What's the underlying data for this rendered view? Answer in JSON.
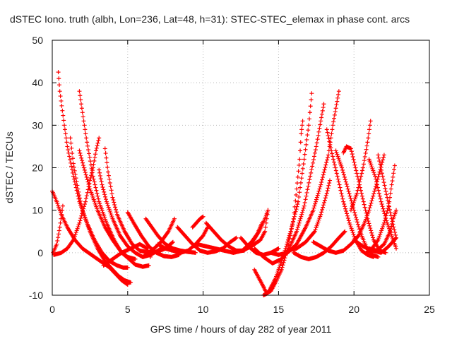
{
  "chart_data": {
    "type": "scatter",
    "title": "dSTEC Iono. truth (albh, Lon=236, Lat=48, h=31): STEC-STEC_elemax in phase cont. arcs",
    "xlabel": "GPS time / hours of day 282 of year 2011",
    "ylabel": "dSTEC  / TECUs",
    "xlim": [
      0,
      25
    ],
    "ylim": [
      -10,
      50
    ],
    "xticks": [
      "0",
      "5",
      "10",
      "15",
      "20",
      "25"
    ],
    "yticks": [
      "-10",
      "0",
      "10",
      "20",
      "30",
      "40",
      "50"
    ],
    "grid": true,
    "marker": "+",
    "series_color": "#ff0000",
    "series": [
      {
        "arc": [
          [
            0.0,
            14.5
          ],
          [
            0.3,
            12
          ],
          [
            0.6,
            9
          ],
          [
            1.0,
            6
          ],
          [
            1.5,
            3
          ],
          [
            2.0,
            1
          ],
          [
            2.6,
            -0.5
          ],
          [
            3.2,
            -2
          ],
          [
            3.8,
            -3.5
          ],
          [
            4.2,
            -5
          ],
          [
            4.6,
            -6.5
          ],
          [
            5.0,
            -7.5
          ]
        ]
      },
      {
        "arc": [
          [
            0.05,
            0
          ],
          [
            0.3,
            2
          ],
          [
            0.5,
            6
          ],
          [
            0.7,
            11
          ]
        ]
      },
      {
        "arc": [
          [
            0.4,
            42.5
          ],
          [
            0.5,
            38
          ],
          [
            0.8,
            30
          ],
          [
            1.0,
            25
          ],
          [
            1.4,
            18
          ],
          [
            1.8,
            12
          ],
          [
            2.3,
            7
          ],
          [
            2.8,
            3
          ],
          [
            3.3,
            0
          ],
          [
            3.8,
            -2
          ],
          [
            4.3,
            -3
          ],
          [
            4.7,
            -3.5
          ],
          [
            5.0,
            -3.5
          ]
        ]
      },
      {
        "arc": [
          [
            0.1,
            -0.5
          ],
          [
            0.6,
            0
          ],
          [
            1.0,
            1
          ],
          [
            1.4,
            3
          ],
          [
            1.8,
            7
          ],
          [
            2.2,
            12
          ],
          [
            2.5,
            17
          ],
          [
            2.7,
            20
          ],
          [
            2.9,
            24
          ],
          [
            3.1,
            27
          ]
        ]
      },
      {
        "arc": [
          [
            1.2,
            27
          ],
          [
            1.4,
            21
          ],
          [
            1.7,
            15
          ],
          [
            2.0,
            10
          ],
          [
            2.5,
            5
          ],
          [
            3.0,
            1
          ],
          [
            3.5,
            -2
          ],
          [
            4.0,
            -4
          ],
          [
            4.4,
            -5.5
          ],
          [
            4.8,
            -6.5
          ],
          [
            5.2,
            -7
          ]
        ]
      },
      {
        "arc": [
          [
            1.8,
            38
          ],
          [
            2.0,
            33
          ],
          [
            2.3,
            26
          ],
          [
            2.7,
            18
          ],
          [
            3.1,
            12
          ],
          [
            3.6,
            7
          ],
          [
            4.1,
            3
          ],
          [
            4.6,
            0
          ],
          [
            5.1,
            -1.5
          ],
          [
            5.5,
            -2.8
          ],
          [
            6.0,
            -3.3
          ],
          [
            6.4,
            -3
          ]
        ]
      },
      {
        "arc": [
          [
            1.8,
            24
          ],
          [
            2.1,
            20
          ],
          [
            2.5,
            15
          ],
          [
            3.0,
            10
          ],
          [
            3.5,
            6
          ],
          [
            4.0,
            3
          ],
          [
            4.5,
            0.5
          ],
          [
            5.0,
            -1
          ],
          [
            5.5,
            -1.5
          ]
        ]
      },
      {
        "arc": [
          [
            3.1,
            19.5
          ],
          [
            3.3,
            16
          ],
          [
            3.6,
            12
          ],
          [
            4.0,
            8
          ],
          [
            4.5,
            4
          ],
          [
            5.0,
            1.5
          ],
          [
            5.5,
            0
          ],
          [
            6.0,
            -1
          ],
          [
            6.5,
            -0.5
          ],
          [
            7.0,
            0.5
          ],
          [
            7.3,
            1.2
          ]
        ]
      },
      {
        "arc": [
          [
            3.5,
            24.5
          ],
          [
            3.7,
            19
          ],
          [
            4.0,
            13
          ],
          [
            4.3,
            9
          ],
          [
            4.8,
            5
          ],
          [
            5.3,
            2
          ],
          [
            5.8,
            0.5
          ],
          [
            6.5,
            0
          ],
          [
            7.0,
            0.3
          ],
          [
            7.5,
            1
          ],
          [
            8.0,
            2.5
          ]
        ]
      },
      {
        "arc": [
          [
            3.4,
            -3
          ],
          [
            4.0,
            -1.5
          ],
          [
            4.6,
            0
          ],
          [
            5.2,
            1
          ],
          [
            5.8,
            2
          ],
          [
            6.3,
            1
          ],
          [
            6.5,
            -1
          ]
        ]
      },
      {
        "arc": [
          [
            5.0,
            9.5
          ],
          [
            5.4,
            7
          ],
          [
            5.9,
            4
          ],
          [
            6.4,
            1.5
          ],
          [
            6.9,
            0
          ],
          [
            7.4,
            -0.8
          ],
          [
            7.9,
            -1
          ],
          [
            8.4,
            -0.5
          ]
        ]
      },
      {
        "arc": [
          [
            6.2,
            8
          ],
          [
            6.6,
            6
          ],
          [
            7.0,
            4
          ],
          [
            7.5,
            2
          ],
          [
            8.0,
            1
          ],
          [
            8.5,
            0.5
          ],
          [
            9.0,
            0.2
          ],
          [
            9.5,
            0
          ]
        ]
      },
      {
        "arc": [
          [
            6.0,
            -1
          ],
          [
            6.6,
            0.5
          ],
          [
            7.2,
            2.5
          ],
          [
            7.7,
            5
          ],
          [
            8.1,
            8
          ]
        ]
      },
      {
        "arc": [
          [
            7.0,
            2
          ],
          [
            7.5,
            1
          ],
          [
            8.0,
            0.5
          ],
          [
            8.5,
            0
          ],
          [
            9.0,
            0.5
          ],
          [
            9.5,
            2
          ],
          [
            10.0,
            4
          ],
          [
            10.3,
            6
          ]
        ]
      },
      {
        "arc": [
          [
            8.3,
            6
          ],
          [
            8.8,
            4
          ],
          [
            9.3,
            2
          ],
          [
            9.8,
            0.5
          ],
          [
            10.3,
            0
          ],
          [
            10.8,
            0.3
          ],
          [
            11.3,
            1
          ],
          [
            11.8,
            2.5
          ],
          [
            12.2,
            3.5
          ]
        ]
      },
      {
        "arc": [
          [
            9.3,
            6
          ],
          [
            9.8,
            8
          ],
          [
            10.0,
            8.5
          ]
        ]
      },
      {
        "arc": [
          [
            9.6,
            2
          ],
          [
            10.2,
            1.5
          ],
          [
            10.8,
            1
          ],
          [
            11.4,
            0.5
          ],
          [
            12.0,
            0
          ],
          [
            12.6,
            0.5
          ],
          [
            13.2,
            2.5
          ],
          [
            13.6,
            4.5
          ],
          [
            13.9,
            7
          ]
        ]
      },
      {
        "arc": [
          [
            10.2,
            7
          ],
          [
            10.7,
            5
          ],
          [
            11.2,
            3
          ],
          [
            11.7,
            1.5
          ],
          [
            12.2,
            0.5
          ],
          [
            12.7,
            0.5
          ],
          [
            13.2,
            2
          ],
          [
            13.7,
            5
          ],
          [
            14.1,
            8
          ],
          [
            14.3,
            10
          ]
        ]
      },
      {
        "arc": [
          [
            12.5,
            3.5
          ],
          [
            13.0,
            1.5
          ],
          [
            13.5,
            0
          ],
          [
            14.0,
            -0.5
          ],
          [
            14.5,
            0
          ],
          [
            15.0,
            1
          ]
        ]
      },
      {
        "arc": [
          [
            13.4,
            -4
          ],
          [
            13.7,
            -6
          ],
          [
            14.0,
            -8
          ],
          [
            14.2,
            -9.5
          ],
          [
            14.5,
            -9
          ],
          [
            14.8,
            -7
          ],
          [
            15.2,
            -4
          ],
          [
            15.6,
            1
          ],
          [
            16.0,
            8
          ],
          [
            16.2,
            15
          ],
          [
            16.4,
            22
          ],
          [
            16.5,
            28
          ],
          [
            16.6,
            31
          ]
        ]
      },
      {
        "arc": [
          [
            12.0,
            0
          ],
          [
            12.6,
            0.5
          ],
          [
            13.2,
            1.5
          ],
          [
            13.8,
            3
          ],
          [
            14.1,
            5
          ],
          [
            14.3,
            10
          ]
        ]
      },
      {
        "arc": [
          [
            14.0,
            -10
          ],
          [
            14.3,
            -9.5
          ],
          [
            14.8,
            -6
          ],
          [
            15.3,
            -1
          ],
          [
            15.8,
            5
          ],
          [
            16.3,
            12
          ],
          [
            16.7,
            22
          ],
          [
            17.0,
            30
          ],
          [
            17.2,
            37.5
          ]
        ]
      },
      {
        "arc": [
          [
            13.4,
            1
          ],
          [
            14.0,
            -1
          ],
          [
            14.6,
            -2.5
          ],
          [
            15.2,
            -1.5
          ],
          [
            15.7,
            1
          ],
          [
            16.2,
            5
          ],
          [
            16.7,
            11
          ],
          [
            17.1,
            18
          ],
          [
            17.5,
            25
          ],
          [
            17.8,
            31
          ],
          [
            18.0,
            35
          ]
        ]
      },
      {
        "arc": [
          [
            14.5,
            0
          ],
          [
            15.0,
            -0.5
          ],
          [
            15.6,
            0
          ],
          [
            16.2,
            2
          ],
          [
            16.8,
            6
          ],
          [
            17.3,
            10
          ],
          [
            17.8,
            16
          ],
          [
            18.3,
            23
          ],
          [
            18.6,
            30
          ],
          [
            18.8,
            34
          ],
          [
            19.0,
            38
          ]
        ]
      },
      {
        "arc": [
          [
            15.6,
            0.5
          ],
          [
            16.2,
            1
          ],
          [
            16.8,
            2.5
          ],
          [
            17.4,
            5
          ],
          [
            17.8,
            9
          ],
          [
            18.2,
            14
          ],
          [
            18.4,
            17
          ]
        ]
      },
      {
        "arc": [
          [
            16.0,
            0
          ],
          [
            16.5,
            -1
          ],
          [
            17.0,
            -1.5
          ],
          [
            17.5,
            -1
          ],
          [
            18.0,
            0
          ],
          [
            18.5,
            1.5
          ],
          [
            19.0,
            3.5
          ],
          [
            19.4,
            5
          ]
        ]
      },
      {
        "arc": [
          [
            17.3,
            2.5
          ],
          [
            17.8,
            1.5
          ],
          [
            18.3,
            0.5
          ],
          [
            18.8,
            0
          ],
          [
            19.3,
            0.5
          ],
          [
            19.8,
            2
          ],
          [
            20.3,
            4
          ],
          [
            20.7,
            7
          ],
          [
            21.0,
            10
          ],
          [
            21.4,
            15
          ],
          [
            21.7,
            19
          ],
          [
            22.0,
            23
          ]
        ]
      },
      {
        "arc": [
          [
            18.2,
            29
          ],
          [
            18.5,
            24
          ],
          [
            18.9,
            18
          ],
          [
            19.3,
            12
          ],
          [
            19.7,
            7
          ],
          [
            20.1,
            3
          ],
          [
            20.5,
            0.5
          ],
          [
            20.9,
            -0.5
          ],
          [
            21.3,
            -1
          ]
        ]
      },
      {
        "arc": [
          [
            18.8,
            24
          ],
          [
            19.2,
            20
          ],
          [
            19.6,
            15
          ],
          [
            20.0,
            10
          ],
          [
            20.4,
            5
          ],
          [
            20.8,
            1.5
          ],
          [
            21.2,
            -0.5
          ],
          [
            21.6,
            -1
          ]
        ]
      },
      {
        "arc": [
          [
            19.3,
            23.5
          ],
          [
            19.5,
            25
          ],
          [
            19.8,
            24.5
          ],
          [
            20.1,
            20
          ],
          [
            20.5,
            14
          ],
          [
            20.9,
            8
          ],
          [
            21.3,
            3
          ],
          [
            21.7,
            0.5
          ],
          [
            22.1,
            0
          ]
        ]
      },
      {
        "arc": [
          [
            19.8,
            10
          ],
          [
            20.2,
            14
          ],
          [
            20.6,
            20
          ],
          [
            20.9,
            26
          ],
          [
            21.1,
            31
          ]
        ]
      },
      {
        "arc": [
          [
            21.0,
            22
          ],
          [
            21.4,
            18
          ],
          [
            21.8,
            12
          ],
          [
            22.2,
            7
          ],
          [
            22.6,
            3
          ],
          [
            22.8,
            1
          ]
        ]
      },
      {
        "arc": [
          [
            21.6,
            23
          ],
          [
            21.9,
            18
          ],
          [
            22.2,
            13
          ],
          [
            22.5,
            8
          ],
          [
            22.8,
            3.5
          ]
        ]
      },
      {
        "arc": [
          [
            20.0,
            3
          ],
          [
            20.6,
            1.5
          ],
          [
            21.2,
            0.5
          ],
          [
            21.8,
            0
          ],
          [
            22.3,
            1.5
          ],
          [
            22.8,
            3.5
          ]
        ]
      },
      {
        "arc": [
          [
            21.0,
            1
          ],
          [
            21.5,
            0.5
          ],
          [
            22.0,
            2
          ],
          [
            22.4,
            5
          ],
          [
            22.6,
            8
          ],
          [
            22.8,
            10
          ]
        ]
      },
      {
        "arc": [
          [
            20.8,
            0
          ],
          [
            21.2,
            1
          ],
          [
            21.6,
            3
          ],
          [
            22.0,
            7
          ],
          [
            22.3,
            11
          ],
          [
            22.5,
            16
          ],
          [
            22.7,
            20.5
          ]
        ]
      }
    ]
  }
}
